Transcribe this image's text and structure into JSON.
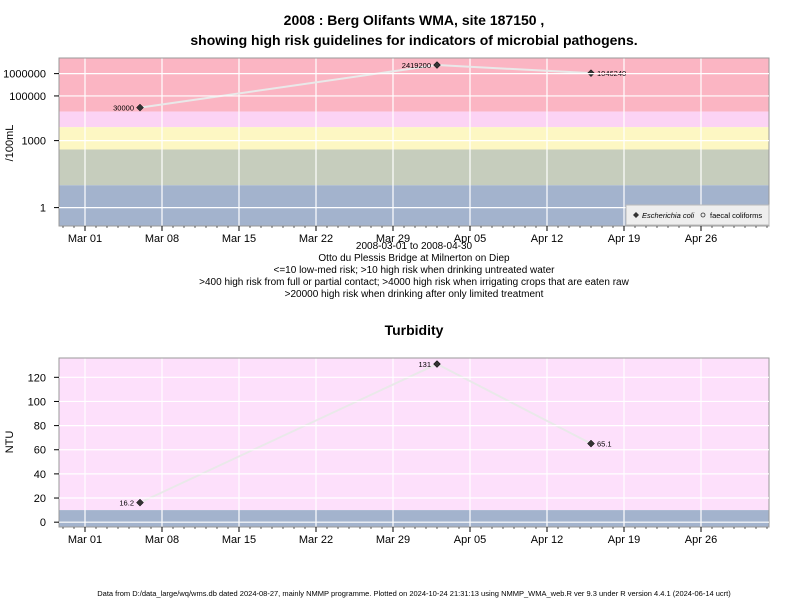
{
  "chart_data": [
    {
      "type": "line",
      "title": "2008 : Berg Olifants WMA, site 187150 ,",
      "subtitle": "showing high risk guidelines for indicators of microbial pathogens.",
      "ylabel": "/100mL",
      "y_scale": "log",
      "ylim": [
        0.15,
        5000000
      ],
      "yticks": [
        {
          "v": 1,
          "label": "1"
        },
        {
          "v": 1000,
          "label": "1000"
        },
        {
          "v": 100000,
          "label": "100000"
        },
        {
          "v": 1000000,
          "label": "1000000"
        }
      ],
      "x_dates": [
        "2008-03-01",
        "2008-03-08",
        "2008-03-15",
        "2008-03-22",
        "2008-03-29",
        "2008-04-05",
        "2008-04-12",
        "2008-04-19",
        "2008-04-26"
      ],
      "xticks": [
        "Mar 01",
        "Mar 08",
        "Mar 15",
        "Mar 22",
        "Mar 29",
        "Apr 05",
        "Apr 12",
        "Apr 19",
        "Apr 26"
      ],
      "xlim": [
        "2007-02-27",
        "2008-05-04"
      ],
      "series": [
        {
          "name": "Escherichia coli",
          "marker": "diamond",
          "points": [
            {
              "x": "2008-03-06",
              "y": 30000,
              "label": "30000"
            },
            {
              "x": "2008-04-02",
              "y": 2419200,
              "label": "2419200"
            },
            {
              "x": "2008-04-16",
              "y": 1046240,
              "label": "1046240"
            }
          ]
        },
        {
          "name": "faecal coliforms",
          "marker": "open-circle",
          "points": []
        }
      ],
      "risk_bands": [
        {
          "from": 20000,
          "to": 5000000,
          "color": "#fbb5c3"
        },
        {
          "from": 4000,
          "to": 20000,
          "color": "#fcd3f4"
        },
        {
          "from": 400,
          "to": 4000,
          "color": "#fdf7c3"
        },
        {
          "from": 10,
          "to": 400,
          "color": "#c6cdbd"
        },
        {
          "from": 0.15,
          "to": 10,
          "color": "#a3b3cd"
        }
      ],
      "legend_position": "bottom-right",
      "grid": true,
      "caption": [
        "2008-03-01 to 2008-04-30",
        "Otto du Plessis Bridge at Milnerton on Diep",
        "<=10 low-med risk; >10 high risk when drinking untreated water",
        ">400 high risk from full or partial contact; >4000 high risk when irrigating crops that are eaten raw",
        ">20000 high risk when drinking after only limited treatment"
      ]
    },
    {
      "type": "line",
      "title": "Turbidity",
      "ylabel": "NTU",
      "ylim": [
        -4,
        136
      ],
      "yticks": [
        0,
        20,
        40,
        60,
        80,
        100,
        120
      ],
      "xticks": [
        "Mar 01",
        "Mar 08",
        "Mar 15",
        "Mar 22",
        "Mar 29",
        "Apr 05",
        "Apr 12",
        "Apr 19",
        "Apr 26"
      ],
      "series": [
        {
          "name": "",
          "marker": "diamond",
          "points": [
            {
              "x": "2008-03-06",
              "y": 16.2,
              "label": "16.2"
            },
            {
              "x": "2008-04-02",
              "y": 131,
              "label": "131"
            },
            {
              "x": "2008-04-16",
              "y": 65.1,
              "label": "65.1"
            }
          ]
        }
      ],
      "risk_bands": [
        {
          "from": 10,
          "to": 136,
          "color": "#fde0fb"
        },
        {
          "from": -4,
          "to": 10,
          "color": "#a3b3cd"
        }
      ],
      "grid": true
    }
  ],
  "footer": "Data from D:/data_large/wq/wms.db dated 2024-08-27, mainly NMMP programme. Plotted on 2024-10-24 21:31:13 using NMMP_WMA_web.R ver 9.3 under R version 4.4.1 (2024-06-14 ucrt)",
  "colors": {
    "line": "#e9e9e9",
    "marker": "#333333",
    "axis": "#000000",
    "grid": "#ffffff"
  }
}
